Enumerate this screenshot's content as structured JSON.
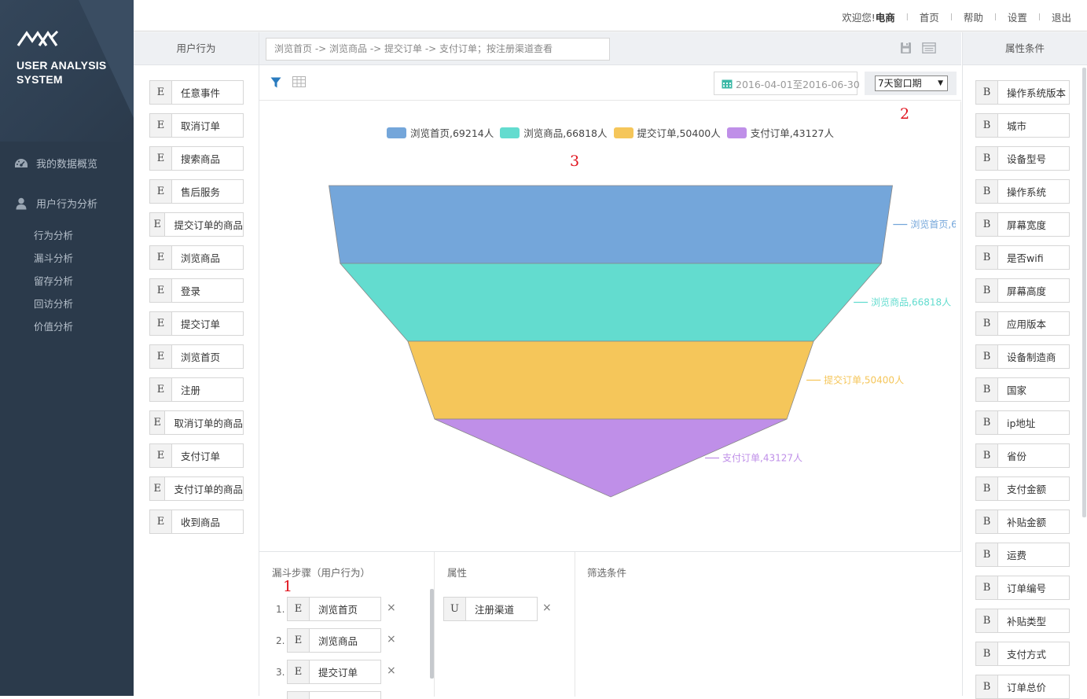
{
  "app": {
    "brand_line1": "USER ANALYSIS",
    "brand_line2": "SYSTEM"
  },
  "nav": {
    "overview": "我的数据概览",
    "behavior": "用户行为分析",
    "sub": [
      "行为分析",
      "漏斗分析",
      "留存分析",
      "回访分析",
      "价值分析"
    ]
  },
  "topbar": {
    "welcome": "欢迎您!",
    "user": "电商",
    "home": "首页",
    "help": "帮助",
    "settings": "设置",
    "logout": "退出"
  },
  "left_panel": {
    "title": "用户行为",
    "tag": "E",
    "events": [
      "任意事件",
      "取消订单",
      "搜索商品",
      "售后服务",
      "提交订单的商品",
      "浏览商品",
      "登录",
      "提交订单",
      "浏览首页",
      "注册",
      "取消订单的商品",
      "支付订单",
      "支付订单的商品",
      "收到商品"
    ]
  },
  "query": {
    "text": "浏览首页 -> 浏览商品 -> 提交订单 -> 支付订单；按注册渠道查看"
  },
  "toolbar": {
    "date_range": "2016-04-01至2016-06-30",
    "window": "7天窗口期"
  },
  "markers": {
    "one": "1",
    "two": "2",
    "three": "3"
  },
  "chart_data": {
    "type": "funnel",
    "series": [
      {
        "name": "浏览首页",
        "value": 69214,
        "label": "浏览首页,69214人",
        "color": "#74a6da"
      },
      {
        "name": "浏览商品",
        "value": 66818,
        "label": "浏览商品,66818人",
        "color": "#63dccf"
      },
      {
        "name": "提交订单",
        "value": 50400,
        "label": "提交订单,50400人",
        "color": "#f5c65a"
      },
      {
        "name": "支付订单",
        "value": 43127,
        "label": "支付订单,43127人",
        "color": "#bf8fe8"
      }
    ],
    "unit": "人",
    "legend_position": "top-center"
  },
  "bottom": {
    "steps_title": "漏斗步骤（用户行为）",
    "attr_title": "属性",
    "filter_title": "筛选条件",
    "steps": [
      {
        "num": "1.",
        "tag": "E",
        "label": "浏览首页"
      },
      {
        "num": "2.",
        "tag": "E",
        "label": "浏览商品"
      },
      {
        "num": "3.",
        "tag": "E",
        "label": "提交订单"
      }
    ],
    "attribute": {
      "tag": "U",
      "label": "注册渠道"
    },
    "remove": "×"
  },
  "right_panel": {
    "title": "属性条件",
    "tag": "B",
    "attributes": [
      "操作系统版本",
      "城市",
      "设备型号",
      "操作系统",
      "屏幕宽度",
      "是否wifi",
      "屏幕高度",
      "应用版本",
      "设备制造商",
      "国家",
      "ip地址",
      "省份",
      "支付金额",
      "补贴金额",
      "运费",
      "订单编号",
      "补贴类型",
      "支付方式",
      "订单总价"
    ]
  },
  "colors": {
    "sidebar": "#2b3a4b",
    "marker": "#e0141e",
    "accent": "#2a7bbf"
  }
}
